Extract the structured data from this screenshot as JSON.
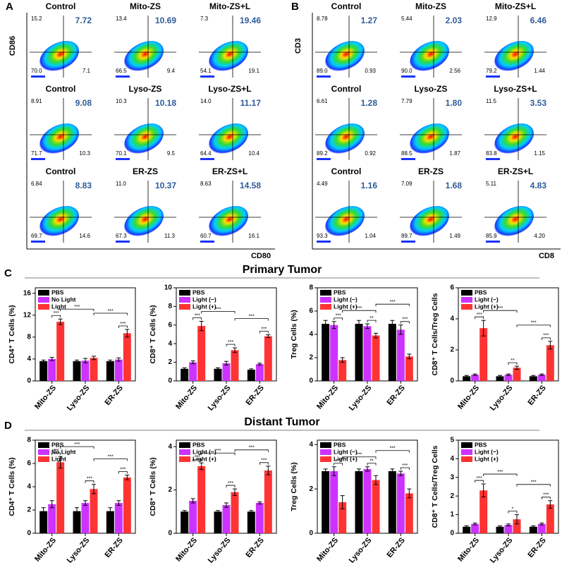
{
  "flow_panels": [
    {
      "label": "A",
      "x_axis": "CD80",
      "y_axis": "CD86",
      "plots": [
        {
          "title": "Control",
          "quadrants": [
            "15.2",
            "7.72",
            "70.0",
            "7.1"
          ]
        },
        {
          "title": "Mito-ZS",
          "quadrants": [
            "13.4",
            "10.69",
            "66.5",
            "9.4"
          ]
        },
        {
          "title": "Mito-ZS+L",
          "quadrants": [
            "7.3",
            "19.46",
            "54.1",
            "19.1"
          ]
        },
        {
          "title": "Control",
          "quadrants": [
            "8.91",
            "9.08",
            "71.7",
            "10.3"
          ]
        },
        {
          "title": "Lyso-ZS",
          "quadrants": [
            "10.3",
            "10.18",
            "70.1",
            "9.5"
          ]
        },
        {
          "title": "Lyso-ZS+L",
          "quadrants": [
            "14.0",
            "11.17",
            "64.4",
            "10.4"
          ]
        },
        {
          "title": "Control",
          "quadrants": [
            "6.84",
            "8.83",
            "69.7",
            "14.6"
          ]
        },
        {
          "title": "ER-ZS",
          "quadrants": [
            "11.0",
            "10.37",
            "67.3",
            "11.3"
          ]
        },
        {
          "title": "ER-ZS+L",
          "quadrants": [
            "8.63",
            "14.58",
            "60.7",
            "16.1"
          ]
        }
      ]
    },
    {
      "label": "B",
      "x_axis": "CD8",
      "y_axis": "CD3",
      "plots": [
        {
          "title": "Control",
          "quadrants": [
            "8.78",
            "1.27",
            "89.0",
            "0.93"
          ]
        },
        {
          "title": "Mito-ZS",
          "quadrants": [
            "5.44",
            "2.03",
            "90.0",
            "2.56"
          ]
        },
        {
          "title": "Mito-ZS+L",
          "quadrants": [
            "12.9",
            "6.46",
            "79.2",
            "1.44"
          ]
        },
        {
          "title": "Control",
          "quadrants": [
            "6.61",
            "1.28",
            "89.2",
            "0.92"
          ]
        },
        {
          "title": "Lyso-ZS",
          "quadrants": [
            "7.79",
            "1.80",
            "88.5",
            "1.87"
          ]
        },
        {
          "title": "Lyso-ZS+L",
          "quadrants": [
            "11.5",
            "3.53",
            "83.8",
            "1.15"
          ]
        },
        {
          "title": "Control",
          "quadrants": [
            "4.49",
            "1.16",
            "93.3",
            "1.04"
          ]
        },
        {
          "title": "ER-ZS",
          "quadrants": [
            "7.09",
            "1.68",
            "89.7",
            "1.49"
          ]
        },
        {
          "title": "ER-ZS+L",
          "quadrants": [
            "5.11",
            "4.83",
            "85.9",
            "4.20"
          ]
        }
      ]
    }
  ],
  "sections": [
    {
      "label": "C",
      "title": "Primary Tumor"
    },
    {
      "label": "D",
      "title": "Distant Tumor"
    }
  ],
  "chart_data": [
    {
      "type": "bar",
      "y_label": "CD4⁺ T Cells (%)",
      "categories": [
        "Mito-ZS",
        "Lyso-ZS",
        "ER-ZS"
      ],
      "ylim": [
        0,
        17
      ],
      "yticks": [
        0,
        4,
        8,
        12,
        16
      ],
      "series": [
        {
          "name": "PBS",
          "color": "#000000",
          "values": [
            3.6,
            3.6,
            3.6
          ],
          "errors": [
            0.2,
            0.2,
            0.2
          ]
        },
        {
          "name": "No Light",
          "color": "#cc33ff",
          "values": [
            4.0,
            3.7,
            3.9
          ],
          "errors": [
            0.3,
            0.4,
            0.3
          ]
        },
        {
          "name": "Light",
          "color": "#ff3333",
          "values": [
            10.8,
            4.2,
            8.7
          ],
          "errors": [
            0.5,
            0.3,
            0.7
          ]
        }
      ],
      "significance": [
        {
          "label": "***",
          "categories": [
            0,
            0
          ],
          "series": [
            1,
            2
          ]
        },
        {
          "label": "***",
          "categories": [
            0,
            1
          ],
          "series": [
            2,
            2
          ]
        },
        {
          "label": "***",
          "categories": [
            1,
            2
          ],
          "series": [
            2,
            2
          ]
        },
        {
          "label": "***",
          "categories": [
            2,
            2
          ],
          "series": [
            1,
            2
          ]
        }
      ]
    },
    {
      "type": "bar",
      "y_label": "CD8⁺ T Cells (%)",
      "categories": [
        "Mito-ZS",
        "Lyso-ZS",
        "ER-ZS"
      ],
      "ylim": [
        0,
        10
      ],
      "yticks": [
        0,
        2,
        4,
        6,
        8,
        10
      ],
      "series": [
        {
          "name": "PBS",
          "color": "#000000",
          "values": [
            1.3,
            1.3,
            1.2
          ],
          "errors": [
            0.1,
            0.1,
            0.1
          ]
        },
        {
          "name": "Light (−)",
          "color": "#cc33ff",
          "values": [
            2.0,
            1.9,
            1.8
          ],
          "errors": [
            0.15,
            0.2,
            0.1
          ]
        },
        {
          "name": "Light (+)",
          "color": "#ff3333",
          "values": [
            5.9,
            3.3,
            4.8
          ],
          "errors": [
            0.5,
            0.25,
            0.15
          ]
        }
      ],
      "significance": [
        {
          "label": "***",
          "categories": [
            0,
            0
          ],
          "series": [
            1,
            2
          ]
        },
        {
          "label": "***",
          "categories": [
            1,
            1
          ],
          "series": [
            1,
            2
          ]
        },
        {
          "label": "***",
          "categories": [
            2,
            2
          ],
          "series": [
            1,
            2
          ]
        },
        {
          "label": "***",
          "categories": [
            0,
            1
          ],
          "series": [
            2,
            2
          ]
        },
        {
          "label": "***",
          "categories": [
            1,
            2
          ],
          "series": [
            2,
            2
          ]
        }
      ]
    },
    {
      "type": "bar",
      "y_label": "Treg Cells (%)",
      "categories": [
        "Mito-ZS",
        "Lyso-ZS",
        "ER-ZS"
      ],
      "ylim": [
        0,
        8
      ],
      "yticks": [
        0,
        2,
        4,
        6,
        8
      ],
      "series": [
        {
          "name": "PBS",
          "color": "#000000",
          "values": [
            4.9,
            4.9,
            4.9
          ],
          "errors": [
            0.3,
            0.3,
            0.3
          ]
        },
        {
          "name": "Light (−)",
          "color": "#cc33ff",
          "values": [
            4.8,
            4.7,
            4.4
          ],
          "errors": [
            0.3,
            0.2,
            0.4
          ]
        },
        {
          "name": "Light (+)",
          "color": "#ff3333",
          "values": [
            1.8,
            3.9,
            2.1
          ],
          "errors": [
            0.2,
            0.2,
            0.2
          ]
        }
      ],
      "significance": [
        {
          "label": "***",
          "categories": [
            0,
            0
          ],
          "series": [
            1,
            2
          ]
        },
        {
          "label": "**",
          "categories": [
            1,
            1
          ],
          "series": [
            1,
            2
          ]
        },
        {
          "label": "***",
          "categories": [
            2,
            2
          ],
          "series": [
            1,
            2
          ]
        },
        {
          "label": "***",
          "categories": [
            0,
            1
          ],
          "series": [
            2,
            2
          ]
        },
        {
          "label": "***",
          "categories": [
            1,
            2
          ],
          "series": [
            2,
            2
          ]
        }
      ]
    },
    {
      "type": "bar",
      "y_label": "CD8⁺ T Cells/Treg Cells",
      "categories": [
        "Mito-ZS",
        "Lyso-ZS",
        "ER-ZS"
      ],
      "ylim": [
        0,
        6
      ],
      "yticks": [
        0,
        2,
        4,
        6
      ],
      "series": [
        {
          "name": "PBS",
          "color": "#000000",
          "values": [
            0.3,
            0.3,
            0.3
          ],
          "errors": [
            0.05,
            0.05,
            0.05
          ]
        },
        {
          "name": "Light (−)",
          "color": "#cc33ff",
          "values": [
            0.4,
            0.4,
            0.4
          ],
          "errors": [
            0.05,
            0.05,
            0.05
          ]
        },
        {
          "name": "Light (+)",
          "color": "#ff3333",
          "values": [
            3.4,
            0.85,
            2.3
          ],
          "errors": [
            0.5,
            0.1,
            0.25
          ]
        }
      ],
      "significance": [
        {
          "label": "***",
          "categories": [
            0,
            0
          ],
          "series": [
            1,
            2
          ]
        },
        {
          "label": "**",
          "categories": [
            1,
            1
          ],
          "series": [
            1,
            2
          ]
        },
        {
          "label": "***",
          "categories": [
            2,
            2
          ],
          "series": [
            1,
            2
          ]
        },
        {
          "label": "***",
          "categories": [
            0,
            1
          ],
          "series": [
            2,
            2
          ]
        },
        {
          "label": "***",
          "categories": [
            1,
            2
          ],
          "series": [
            2,
            2
          ]
        }
      ]
    },
    {
      "type": "bar",
      "y_label": "CD4⁺ T Cells (%)",
      "categories": [
        "Mito-ZS",
        "Lyso-ZS",
        "ER-ZS"
      ],
      "ylim": [
        0,
        8
      ],
      "yticks": [
        0,
        2,
        4,
        6,
        8
      ],
      "series": [
        {
          "name": "PBS",
          "color": "#000000",
          "values": [
            1.9,
            1.9,
            1.9
          ],
          "errors": [
            0.3,
            0.3,
            0.3
          ]
        },
        {
          "name": "No Light",
          "color": "#cc33ff",
          "values": [
            2.5,
            2.6,
            2.6
          ],
          "errors": [
            0.3,
            0.2,
            0.2
          ]
        },
        {
          "name": "Light",
          "color": "#ff3333",
          "values": [
            6.1,
            3.8,
            4.8
          ],
          "errors": [
            0.5,
            0.4,
            0.2
          ]
        }
      ],
      "significance": [
        {
          "label": "***",
          "categories": [
            0,
            0
          ],
          "series": [
            1,
            2
          ]
        },
        {
          "label": "***",
          "categories": [
            1,
            1
          ],
          "series": [
            1,
            2
          ]
        },
        {
          "label": "***",
          "categories": [
            2,
            2
          ],
          "series": [
            1,
            2
          ]
        },
        {
          "label": "***",
          "categories": [
            0,
            1
          ],
          "series": [
            2,
            2
          ]
        },
        {
          "label": "***",
          "categories": [
            1,
            2
          ],
          "series": [
            2,
            2
          ]
        }
      ]
    },
    {
      "type": "bar",
      "y_label": "CD8⁺ T Cells (%)",
      "categories": [
        "Mito-ZS",
        "Lyso-ZS",
        "ER-ZS"
      ],
      "ylim": [
        0,
        4.3
      ],
      "yticks": [
        0,
        2,
        4
      ],
      "series": [
        {
          "name": "PBS",
          "color": "#000000",
          "values": [
            1.0,
            1.0,
            1.0
          ],
          "errors": [
            0.05,
            0.05,
            0.05
          ]
        },
        {
          "name": "Light (−)",
          "color": "#cc33ff",
          "values": [
            1.5,
            1.3,
            1.4
          ],
          "errors": [
            0.1,
            0.1,
            0.05
          ]
        },
        {
          "name": "Light (+)",
          "color": "#ff3333",
          "values": [
            3.1,
            1.9,
            2.9
          ],
          "errors": [
            0.15,
            0.15,
            0.2
          ]
        }
      ],
      "significance": [
        {
          "label": "***",
          "categories": [
            0,
            0
          ],
          "series": [
            1,
            2
          ]
        },
        {
          "label": "***",
          "categories": [
            1,
            1
          ],
          "series": [
            1,
            2
          ]
        },
        {
          "label": "***",
          "categories": [
            2,
            2
          ],
          "series": [
            1,
            2
          ]
        },
        {
          "label": "***",
          "categories": [
            0,
            1
          ],
          "series": [
            2,
            2
          ]
        },
        {
          "label": "***",
          "categories": [
            1,
            2
          ],
          "series": [
            2,
            2
          ]
        }
      ]
    },
    {
      "type": "bar",
      "y_label": "Treg Cells (%)",
      "categories": [
        "Mito-ZS",
        "Lyso-ZS",
        "ER-ZS"
      ],
      "ylim": [
        0,
        4.2
      ],
      "yticks": [
        0,
        2,
        4
      ],
      "series": [
        {
          "name": "PBS",
          "color": "#000000",
          "values": [
            2.8,
            2.8,
            2.8
          ],
          "errors": [
            0.1,
            0.1,
            0.1
          ]
        },
        {
          "name": "Light (−)",
          "color": "#cc33ff",
          "values": [
            2.8,
            2.9,
            2.7
          ],
          "errors": [
            0.2,
            0.1,
            0.1
          ]
        },
        {
          "name": "Light (+)",
          "color": "#ff3333",
          "values": [
            1.4,
            2.4,
            1.8
          ],
          "errors": [
            0.3,
            0.2,
            0.2
          ]
        }
      ],
      "significance": [
        {
          "label": "***",
          "categories": [
            0,
            0
          ],
          "series": [
            1,
            2
          ]
        },
        {
          "label": "**",
          "categories": [
            1,
            1
          ],
          "series": [
            1,
            2
          ]
        },
        {
          "label": "***",
          "categories": [
            2,
            2
          ],
          "series": [
            1,
            2
          ]
        },
        {
          "label": "***",
          "categories": [
            0,
            1
          ],
          "series": [
            2,
            2
          ]
        },
        {
          "label": "***",
          "categories": [
            1,
            2
          ],
          "series": [
            2,
            2
          ]
        }
      ]
    },
    {
      "type": "bar",
      "y_label": "CD8⁺ T Cells/Treg Cells",
      "categories": [
        "Mito-ZS",
        "Lyso-ZS",
        "ER-ZS"
      ],
      "ylim": [
        0,
        5
      ],
      "yticks": [
        0,
        1,
        2,
        3,
        4,
        5
      ],
      "series": [
        {
          "name": "PBS",
          "color": "#000000",
          "values": [
            0.35,
            0.35,
            0.35
          ],
          "errors": [
            0.05,
            0.05,
            0.05
          ]
        },
        {
          "name": "Light (−)",
          "color": "#cc33ff",
          "values": [
            0.5,
            0.45,
            0.5
          ],
          "errors": [
            0.05,
            0.05,
            0.05
          ]
        },
        {
          "name": "Light (+)",
          "color": "#ff3333",
          "values": [
            2.3,
            0.75,
            1.55
          ],
          "errors": [
            0.35,
            0.25,
            0.2
          ]
        }
      ],
      "significance": [
        {
          "label": "***",
          "categories": [
            0,
            0
          ],
          "series": [
            1,
            2
          ]
        },
        {
          "label": "*",
          "categories": [
            1,
            1
          ],
          "series": [
            1,
            2
          ]
        },
        {
          "label": "***",
          "categories": [
            2,
            2
          ],
          "series": [
            1,
            2
          ]
        },
        {
          "label": "***",
          "categories": [
            0,
            1
          ],
          "series": [
            2,
            2
          ]
        },
        {
          "label": "***",
          "categories": [
            1,
            2
          ],
          "series": [
            2,
            2
          ]
        }
      ]
    }
  ]
}
